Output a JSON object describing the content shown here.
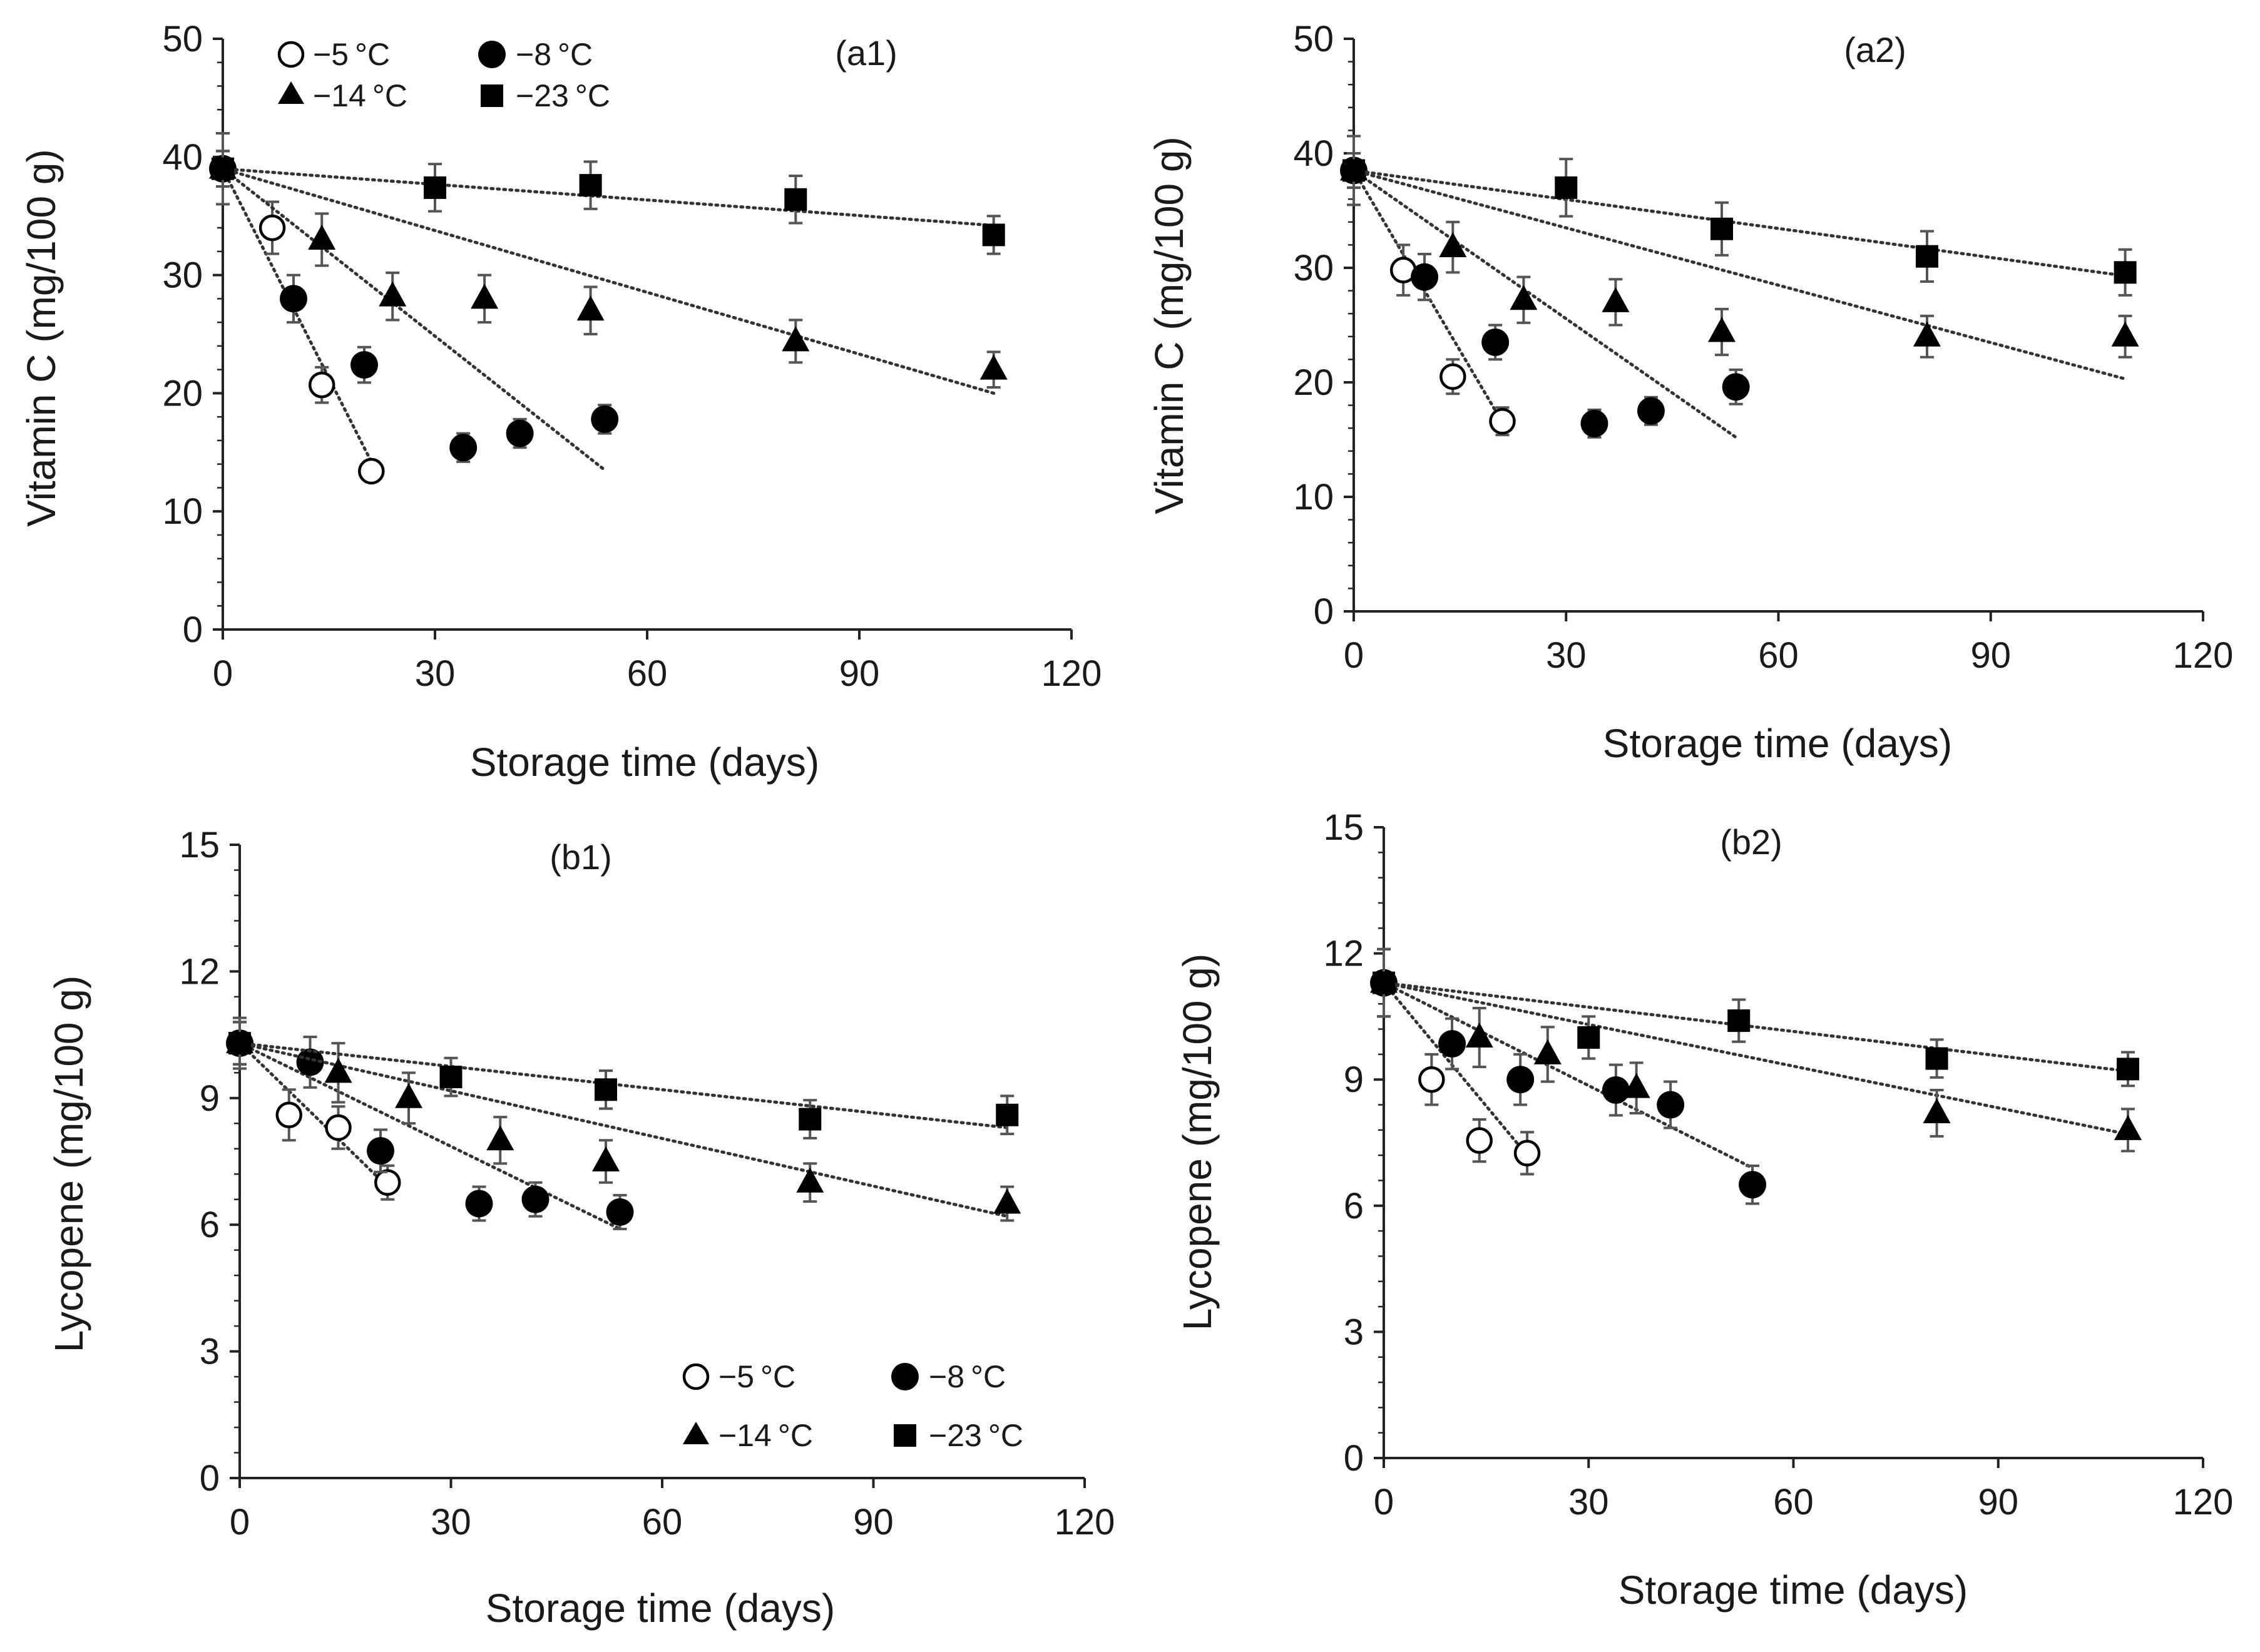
{
  "figure": {
    "legend_entries": [
      {
        "label": "−5 °C",
        "marker": "open-circle"
      },
      {
        "label": "−8 °C",
        "marker": "filled-circle"
      },
      {
        "label": "−14 °C",
        "marker": "filled-triangle"
      },
      {
        "label": "−23 °C",
        "marker": "filled-square"
      }
    ]
  },
  "chart_data": [
    {
      "type": "scatter",
      "panel_label": "(a1)",
      "xlabel": "Storage time (days)",
      "ylabel": "Vitamin C (mg/100 g)",
      "xlim": [
        0,
        120
      ],
      "xticks": [
        0,
        30,
        60,
        90,
        120
      ],
      "ylim": [
        0,
        50
      ],
      "yticks": [
        0,
        10,
        20,
        30,
        40,
        50
      ],
      "legend": "top-left",
      "series": [
        {
          "name": "−5 °C",
          "marker": "open-circle",
          "x": [
            0,
            7,
            14,
            21
          ],
          "y": [
            39,
            34,
            20.7,
            13.4
          ],
          "err": [
            1.5,
            2.2,
            1.5,
            0.8
          ],
          "fit_x": [
            0,
            21
          ],
          "fit_y": [
            39,
            14.2
          ]
        },
        {
          "name": "−8 °C",
          "marker": "filled-circle",
          "x": [
            0,
            10,
            20,
            34,
            42,
            54
          ],
          "y": [
            39,
            28,
            22.4,
            15.4,
            16.6,
            17.8
          ],
          "err": [
            1.5,
            2,
            1.5,
            1.2,
            1.2,
            1.2
          ],
          "fit_x": [
            0,
            54
          ],
          "fit_y": [
            39,
            13.5
          ]
        },
        {
          "name": "−14 °C",
          "marker": "filled-triangle",
          "x": [
            0,
            14,
            24,
            37,
            52,
            81,
            109
          ],
          "y": [
            39,
            33,
            28.2,
            28,
            27,
            24.4,
            22
          ],
          "err": [
            1.5,
            2.2,
            2,
            2,
            2,
            1.8,
            1.5
          ],
          "fit_x": [
            0,
            109
          ],
          "fit_y": [
            39,
            20
          ]
        },
        {
          "name": "−23 °C",
          "marker": "filled-square",
          "x": [
            0,
            30,
            52,
            81,
            109
          ],
          "y": [
            39,
            37.4,
            37.6,
            36.4,
            33.4
          ],
          "err": [
            3,
            2,
            2,
            2,
            1.6
          ],
          "fit_x": [
            0,
            109
          ],
          "fit_y": [
            39,
            34.2
          ]
        }
      ]
    },
    {
      "type": "scatter",
      "panel_label": "(a2)",
      "xlabel": "Storage time (days)",
      "ylabel": "Vitamin C (mg/100 g)",
      "xlim": [
        0,
        120
      ],
      "xticks": [
        0,
        30,
        60,
        90,
        120
      ],
      "ylim": [
        0,
        50
      ],
      "yticks": [
        0,
        10,
        20,
        30,
        40,
        50
      ],
      "series": [
        {
          "name": "−5 °C",
          "marker": "open-circle",
          "x": [
            0,
            7,
            14,
            21
          ],
          "y": [
            38.5,
            29.8,
            20.5,
            16.6
          ],
          "err": [
            1.5,
            2.2,
            1.5,
            1.2
          ],
          "fit_x": [
            0,
            21
          ],
          "fit_y": [
            38.5,
            16.5
          ]
        },
        {
          "name": "−8 °C",
          "marker": "filled-circle",
          "x": [
            0,
            10,
            20,
            34,
            42,
            54
          ],
          "y": [
            38.5,
            29.2,
            23.5,
            16.4,
            17.5,
            19.6
          ],
          "err": [
            1.5,
            2,
            1.5,
            1.2,
            1.2,
            1.5
          ],
          "fit_x": [
            0,
            54
          ],
          "fit_y": [
            38.5,
            15.2
          ]
        },
        {
          "name": "−14 °C",
          "marker": "filled-triangle",
          "x": [
            0,
            14,
            24,
            37,
            52,
            81,
            109
          ],
          "y": [
            38.5,
            31.8,
            27.2,
            27,
            24.4,
            24,
            24
          ],
          "err": [
            1.5,
            2.2,
            2,
            2,
            2,
            1.8,
            1.8
          ],
          "fit_x": [
            0,
            109
          ],
          "fit_y": [
            38.5,
            20.3
          ]
        },
        {
          "name": "−23 °C",
          "marker": "filled-square",
          "x": [
            0,
            30,
            52,
            81,
            109
          ],
          "y": [
            38.5,
            37,
            33.4,
            31,
            29.6
          ],
          "err": [
            3,
            2.5,
            2.3,
            2.2,
            2
          ],
          "fit_x": [
            0,
            109
          ],
          "fit_y": [
            38.5,
            29.3
          ]
        }
      ]
    },
    {
      "type": "scatter",
      "panel_label": "(b1)",
      "xlabel": "Storage time (days)",
      "ylabel": "Lycopene (mg/100 g)",
      "xlim": [
        0,
        120
      ],
      "xticks": [
        0,
        30,
        60,
        90,
        120
      ],
      "ylim": [
        0,
        15
      ],
      "yticks": [
        0,
        3,
        6,
        9,
        12,
        15
      ],
      "legend": "bottom-right",
      "series": [
        {
          "name": "−5 °C",
          "marker": "open-circle",
          "x": [
            0,
            7,
            14,
            21
          ],
          "y": [
            10.3,
            8.6,
            8.3,
            7
          ],
          "err": [
            0.5,
            0.6,
            0.5,
            0.4
          ],
          "fit_x": [
            0,
            21
          ],
          "fit_y": [
            10.3,
            6.9
          ]
        },
        {
          "name": "−8 °C",
          "marker": "filled-circle",
          "x": [
            0,
            10,
            20,
            34,
            42,
            54
          ],
          "y": [
            10.3,
            9.85,
            7.75,
            6.5,
            6.6,
            6.3
          ],
          "err": [
            0.5,
            0.6,
            0.5,
            0.4,
            0.4,
            0.4
          ],
          "fit_x": [
            0,
            54
          ],
          "fit_y": [
            10.3,
            5.9
          ]
        },
        {
          "name": "−14 °C",
          "marker": "filled-triangle",
          "x": [
            0,
            14,
            24,
            37,
            52,
            81,
            109
          ],
          "y": [
            10.3,
            9.6,
            9,
            8,
            7.5,
            7,
            6.5
          ],
          "err": [
            0.5,
            0.7,
            0.6,
            0.55,
            0.5,
            0.45,
            0.4
          ],
          "fit_x": [
            0,
            109
          ],
          "fit_y": [
            10.3,
            6.2
          ]
        },
        {
          "name": "−23 °C",
          "marker": "filled-square",
          "x": [
            0,
            30,
            52,
            81,
            109
          ],
          "y": [
            10.3,
            9.5,
            9.2,
            8.5,
            8.6
          ],
          "err": [
            0.6,
            0.45,
            0.45,
            0.45,
            0.45
          ],
          "fit_x": [
            0,
            109
          ],
          "fit_y": [
            10.3,
            8.3
          ]
        }
      ]
    },
    {
      "type": "scatter",
      "panel_label": "(b2)",
      "xlabel": "Storage time (days)",
      "ylabel": "Lycopene (mg/100 g)",
      "xlim": [
        0,
        120
      ],
      "xticks": [
        0,
        30,
        60,
        90,
        120
      ],
      "ylim": [
        0,
        15
      ],
      "yticks": [
        0,
        3,
        6,
        9,
        12,
        15
      ],
      "series": [
        {
          "name": "−5 °C",
          "marker": "open-circle",
          "x": [
            0,
            7,
            14,
            21
          ],
          "y": [
            11.3,
            9,
            7.55,
            7.25
          ],
          "err": [
            0.8,
            0.6,
            0.5,
            0.5
          ],
          "fit_x": [
            0,
            21
          ],
          "fit_y": [
            11.3,
            7.2
          ]
        },
        {
          "name": "−8 °C",
          "marker": "filled-circle",
          "x": [
            0,
            10,
            20,
            34,
            42,
            54
          ],
          "y": [
            11.3,
            9.85,
            9,
            8.75,
            8.4,
            6.5
          ],
          "err": [
            0.8,
            0.6,
            0.6,
            0.6,
            0.55,
            0.45
          ],
          "fit_x": [
            0,
            54
          ],
          "fit_y": [
            11.3,
            6.9
          ]
        },
        {
          "name": "−14 °C",
          "marker": "filled-triangle",
          "x": [
            0,
            14,
            24,
            37,
            81,
            109
          ],
          "y": [
            11.3,
            10,
            9.6,
            8.8,
            8.2,
            7.8
          ],
          "err": [
            0.8,
            0.7,
            0.65,
            0.6,
            0.55,
            0.5
          ],
          "fit_x": [
            0,
            109
          ],
          "fit_y": [
            11.3,
            7.7
          ]
        },
        {
          "name": "−23 °C",
          "marker": "filled-square",
          "x": [
            0,
            30,
            52,
            81,
            109
          ],
          "y": [
            11.3,
            10,
            10.4,
            9.5,
            9.25
          ],
          "err": [
            0.8,
            0.5,
            0.5,
            0.45,
            0.4
          ],
          "fit_x": [
            0,
            109
          ],
          "fit_y": [
            11.3,
            9.2
          ]
        }
      ]
    }
  ]
}
